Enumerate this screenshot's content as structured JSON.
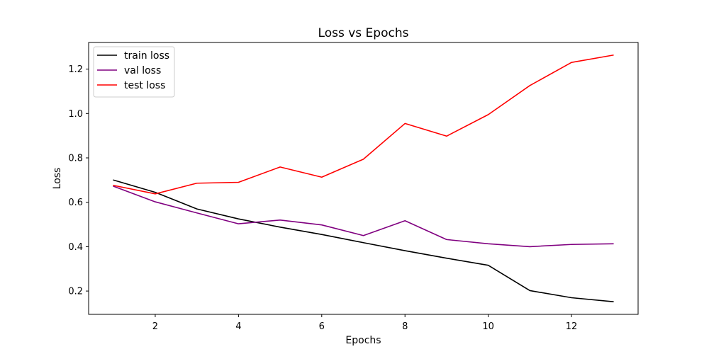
{
  "chart_data": {
    "type": "line",
    "title": "Loss vs Epochs",
    "xlabel": "Epochs",
    "ylabel": "Loss",
    "x": [
      1,
      2,
      3,
      4,
      5,
      6,
      7,
      8,
      9,
      10,
      11,
      12,
      13
    ],
    "xlim": [
      0.4,
      13.6
    ],
    "ylim": [
      0.095,
      1.32
    ],
    "xticks": [
      2,
      4,
      6,
      8,
      10,
      12
    ],
    "yticks": [
      0.2,
      0.4,
      0.6,
      0.8,
      1.0,
      1.2
    ],
    "xtick_labels": [
      "2",
      "4",
      "6",
      "8",
      "10",
      "12"
    ],
    "ytick_labels": [
      "0.2",
      "0.4",
      "0.6",
      "0.8",
      "1.0",
      "1.2"
    ],
    "grid": false,
    "legend_position": "top-left",
    "series": [
      {
        "name": "train loss",
        "color": "#000000",
        "values": [
          0.7,
          0.645,
          0.57,
          0.525,
          0.488,
          0.455,
          0.418,
          0.382,
          0.348,
          0.316,
          0.202,
          0.17,
          0.152
        ]
      },
      {
        "name": "val loss",
        "color": "#800080",
        "values": [
          0.672,
          0.602,
          0.552,
          0.503,
          0.52,
          0.498,
          0.45,
          0.517,
          0.432,
          0.413,
          0.4,
          0.41,
          0.413
        ]
      },
      {
        "name": "test loss",
        "color": "#ff0000",
        "values": [
          0.676,
          0.638,
          0.686,
          0.69,
          0.759,
          0.713,
          0.794,
          0.955,
          0.898,
          0.995,
          1.126,
          1.23,
          1.263
        ]
      }
    ]
  }
}
